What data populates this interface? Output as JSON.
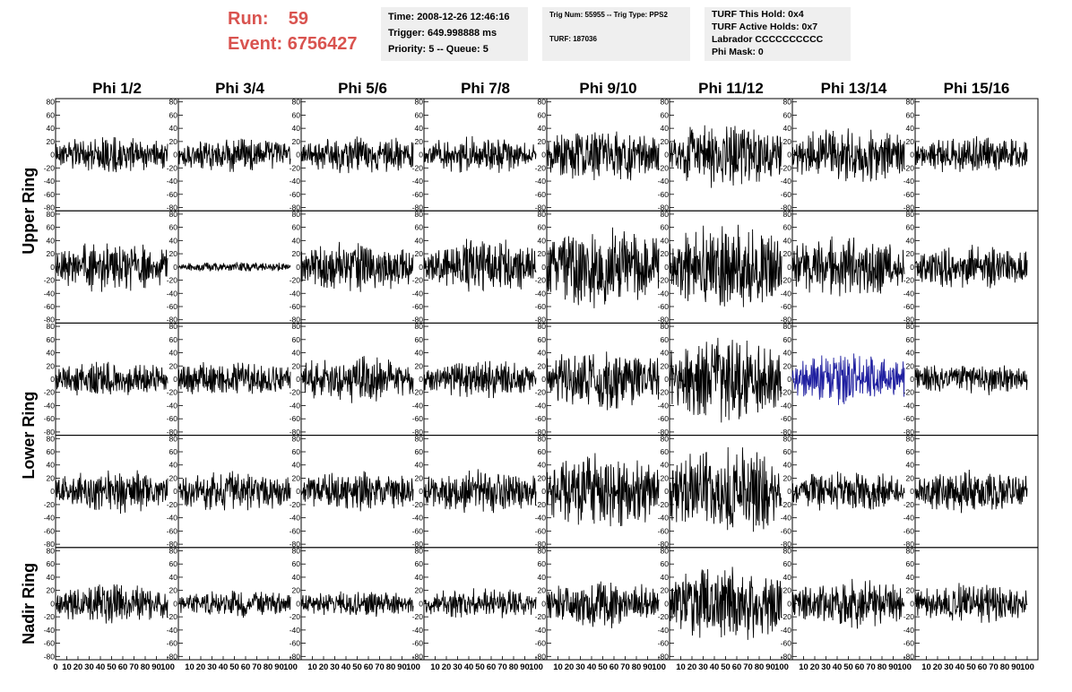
{
  "header": {
    "run_label": "Run:",
    "run_value": "59",
    "event_label": "Event:",
    "event_value": "6756427",
    "time_line": "Time: 2008-12-26 12:46:16",
    "trigger_line": "Trigger: 649.998888 ms",
    "priority_line": "Priority: 5 -- Queue: 5",
    "trig_num_line": "Trig Num: 55955 -- Trig Type: PPS2",
    "turf_line": "TURF: 187036",
    "turf_hold_line": "TURF This Hold: 0x4",
    "turf_active_line": "TURF Active Holds: 0x7",
    "labrador_line": "Labrador CCCCCCCCCC",
    "phi_mask_line": "Phi Mask: 0"
  },
  "colors": {
    "header_text": "#d9534f",
    "trace": "#000000",
    "highlight_trace": "#1f1fa0",
    "info_box_bg": "#efefef"
  },
  "chart_data": {
    "type": "line",
    "columns": [
      "Phi 1/2",
      "Phi 3/4",
      "Phi 5/6",
      "Phi 7/8",
      "Phi 9/10",
      "Phi 11/12",
      "Phi 13/14",
      "Phi 15/16"
    ],
    "ring_labels": [
      "Upper Ring",
      "Lower Ring",
      "Nadir Ring"
    ],
    "ylim": [
      -85,
      85
    ],
    "yticks": [
      -80,
      -60,
      -40,
      -20,
      0,
      20,
      40,
      60,
      80
    ],
    "xlim": [
      0,
      100
    ],
    "xticks": [
      0,
      10,
      20,
      30,
      40,
      50,
      60,
      70,
      80,
      90,
      100
    ],
    "amplitude_by_panel": [
      [
        22,
        20,
        24,
        22,
        32,
        40,
        34,
        22
      ],
      [
        30,
        6,
        30,
        34,
        50,
        50,
        36,
        26
      ],
      [
        22,
        22,
        28,
        22,
        36,
        50,
        30,
        20
      ],
      [
        26,
        24,
        24,
        26,
        44,
        52,
        24,
        26
      ],
      [
        24,
        16,
        16,
        18,
        28,
        46,
        30,
        24
      ]
    ],
    "highlight_panel": {
      "row": 2,
      "col": 6
    }
  }
}
